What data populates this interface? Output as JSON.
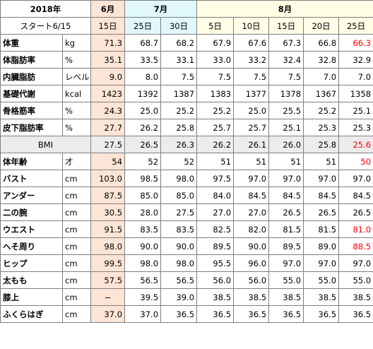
{
  "header": {
    "year": "2018年",
    "start": "スタート6/15",
    "months": [
      {
        "label": "6月",
        "cls": "jun",
        "span": 1
      },
      {
        "label": "7月",
        "cls": "jul",
        "span": 2
      },
      {
        "label": "8月",
        "cls": "aug",
        "span": 5
      }
    ],
    "days": [
      "15日",
      "25日",
      "30日",
      "5日",
      "10日",
      "15日",
      "20日",
      "25日"
    ],
    "day_classes": [
      "jun",
      "jul",
      "jul",
      "aug",
      "aug",
      "aug",
      "aug",
      "aug"
    ]
  },
  "rows": [
    {
      "label": "体重",
      "unit": "kg",
      "values": [
        "71.3",
        "68.7",
        "68.2",
        "67.9",
        "67.6",
        "67.3",
        "66.8",
        "66.3"
      ],
      "red": [
        7
      ]
    },
    {
      "label": "体脂肪率",
      "unit": "%",
      "values": [
        "35.1",
        "33.5",
        "33.1",
        "33.0",
        "33.2",
        "32.4",
        "32.8",
        "32.9"
      ],
      "red": []
    },
    {
      "label": "内臓脂肪",
      "unit": "レベル",
      "values": [
        "9.0",
        "8.0",
        "7.5",
        "7.5",
        "7.5",
        "7.5",
        "7.0",
        "7.0"
      ],
      "red": []
    },
    {
      "label": "基礎代謝",
      "unit": "kcal",
      "values": [
        "1423",
        "1392",
        "1387",
        "1383",
        "1377",
        "1378",
        "1367",
        "1358"
      ],
      "red": []
    },
    {
      "label": "骨格筋率",
      "unit": "%",
      "values": [
        "24.3",
        "25.0",
        "25.2",
        "25.2",
        "25.0",
        "25.5",
        "25.2",
        "25.1"
      ],
      "red": []
    },
    {
      "label": "皮下脂肪率",
      "unit": "%",
      "values": [
        "27.7",
        "26.2",
        "25.8",
        "25.7",
        "25.7",
        "25.1",
        "25.3",
        "25.3"
      ],
      "red": []
    },
    {
      "label": "BMI",
      "unit": "",
      "values": [
        "27.5",
        "26.5",
        "26.3",
        "26.2",
        "26.1",
        "26.0",
        "25.8",
        "25.6"
      ],
      "red": [
        7
      ],
      "gray": true
    },
    {
      "label": "体年齢",
      "unit": "才",
      "values": [
        "54",
        "52",
        "52",
        "51",
        "51",
        "51",
        "51",
        "50"
      ],
      "red": [
        7
      ]
    },
    {
      "label": "バスト",
      "unit": "cm",
      "values": [
        "103.0",
        "98.5",
        "98.0",
        "97.5",
        "97.0",
        "97.0",
        "97.0",
        "97.0"
      ],
      "red": []
    },
    {
      "label": "アンダー",
      "unit": "cm",
      "values": [
        "87.5",
        "85.0",
        "85.0",
        "84.0",
        "84.5",
        "84.5",
        "84.5",
        "84.5"
      ],
      "red": []
    },
    {
      "label": "二の腕",
      "unit": "cm",
      "values": [
        "30.5",
        "28.0",
        "27.5",
        "27.0",
        "27.0",
        "26.5",
        "26.5",
        "26.5"
      ],
      "red": []
    },
    {
      "label": "ウエスト",
      "unit": "cm",
      "values": [
        "91.5",
        "83.5",
        "83.5",
        "82.5",
        "82.0",
        "81.5",
        "81.5",
        "81.0"
      ],
      "red": [
        7
      ]
    },
    {
      "label": "へそ周り",
      "unit": "cm",
      "values": [
        "98.0",
        "90.0",
        "90.0",
        "89.5",
        "90.0",
        "89.5",
        "89.0",
        "88.5"
      ],
      "red": [
        7
      ]
    },
    {
      "label": "ヒップ",
      "unit": "cm",
      "values": [
        "99.5",
        "98.0",
        "98.0",
        "95.5",
        "96.0",
        "97.0",
        "97.0",
        "97.0"
      ],
      "red": []
    },
    {
      "label": "太もも",
      "unit": "cm",
      "values": [
        "57.5",
        "56.5",
        "56.5",
        "56.0",
        "56.0",
        "55.0",
        "55.0",
        "55.0"
      ],
      "red": []
    },
    {
      "label": "膝上",
      "unit": "cm",
      "values": [
        "−",
        "39.5",
        "39.0",
        "38.5",
        "38.5",
        "38.5",
        "38.5",
        "38.5"
      ],
      "red": []
    },
    {
      "label": "ふくらはぎ",
      "unit": "cm",
      "values": [
        "37.0",
        "37.0",
        "36.5",
        "36.5",
        "36.5",
        "36.5",
        "36.5",
        "36.5"
      ],
      "red": []
    }
  ],
  "colors": {
    "june": "#fce4d6",
    "july": "#e0f8fc",
    "august": "#fefde6",
    "highlight": "#ff0000"
  }
}
